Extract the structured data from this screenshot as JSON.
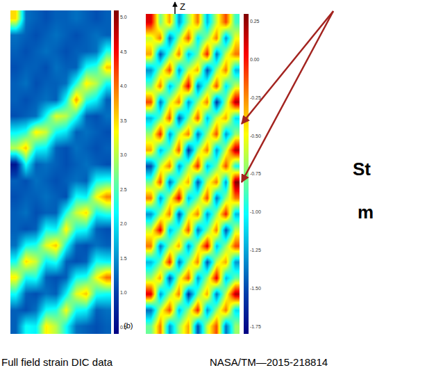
{
  "chart_data": [
    {
      "type": "heatmap",
      "tick_labels": false,
      "annotations": [
        "(b)"
      ],
      "caption": "Full field strain DIC data",
      "colorbar_range": [
        0.4,
        5.1
      ],
      "colorbar_ticks": [
        {
          "value": 0.5,
          "label": "0.5"
        },
        {
          "value": 1.0,
          "label": "1.0"
        },
        {
          "value": 1.5,
          "label": "1.5"
        },
        {
          "value": 2.0,
          "label": "2.0"
        },
        {
          "value": 2.5,
          "label": "2.5"
        },
        {
          "value": 3.0,
          "label": "3.0"
        },
        {
          "value": 3.5,
          "label": "3.5"
        },
        {
          "value": 4.0,
          "label": "4.0"
        },
        {
          "value": 4.5,
          "label": "4.5"
        },
        {
          "value": 5.0,
          "label": "5.0"
        }
      ],
      "z": [
        [
          3.5,
          1.3,
          1.2,
          1.1,
          1.2,
          1.2,
          1.3,
          1.2,
          1.1,
          1.2
        ],
        [
          1.3,
          1.2,
          1.1,
          1.2,
          1.3,
          1.2,
          1.1,
          1.2,
          1.3,
          1.2
        ],
        [
          1.2,
          1.1,
          1.2,
          1.3,
          1.2,
          1.1,
          1.2,
          1.2,
          1.3,
          2.3
        ],
        [
          1.1,
          1.2,
          1.2,
          1.1,
          1.3,
          1.2,
          1.2,
          2.2,
          2.4,
          3.6
        ],
        [
          1.2,
          1.3,
          1.1,
          1.2,
          1.2,
          1.3,
          2.3,
          3.4,
          3.0,
          2.2
        ],
        [
          1.2,
          1.1,
          1.2,
          1.3,
          1.2,
          2.2,
          3.8,
          2.4,
          2.1,
          1.2
        ],
        [
          1.1,
          1.2,
          1.3,
          2.2,
          3.2,
          3.0,
          2.3,
          1.2,
          1.1,
          1.3
        ],
        [
          2.1,
          2.3,
          3.4,
          3.1,
          2.2,
          2.0,
          1.2,
          1.3,
          1.2,
          1.1
        ],
        [
          3.0,
          3.6,
          2.2,
          2.1,
          1.2,
          1.1,
          1.3,
          1.2,
          1.1,
          1.2
        ],
        [
          0.6,
          2.2,
          1.2,
          1.3,
          1.2,
          1.1,
          1.2,
          1.3,
          1.2,
          1.1
        ],
        [
          1.2,
          1.1,
          1.3,
          1.2,
          1.1,
          1.2,
          1.3,
          1.2,
          2.2,
          2.3
        ],
        [
          1.1,
          1.2,
          1.2,
          1.3,
          1.2,
          1.1,
          2.2,
          2.1,
          3.3,
          3.9
        ],
        [
          1.2,
          1.3,
          1.1,
          1.2,
          1.2,
          2.3,
          3.1,
          3.5,
          2.2,
          2.4
        ],
        [
          1.2,
          1.1,
          1.2,
          2.2,
          2.1,
          3.4,
          2.3,
          2.2,
          1.2,
          1.1
        ],
        [
          1.3,
          2.2,
          2.3,
          3.2,
          3.6,
          2.2,
          1.2,
          1.1,
          1.3,
          1.2
        ],
        [
          2.2,
          3.5,
          3.1,
          2.1,
          2.3,
          1.2,
          1.1,
          1.2,
          2.2,
          2.1
        ],
        [
          3.4,
          2.2,
          2.3,
          1.2,
          1.1,
          1.2,
          2.2,
          2.3,
          3.3,
          4.0
        ],
        [
          2.2,
          1.2,
          1.1,
          1.3,
          1.2,
          2.1,
          3.2,
          3.6,
          2.3,
          2.2
        ],
        [
          1.2,
          1.1,
          1.3,
          2.2,
          2.3,
          3.3,
          2.2,
          2.1,
          1.2,
          1.3
        ],
        [
          1.2,
          2.2,
          2.1,
          3.4,
          3.0,
          2.2,
          1.3,
          1.2,
          1.1,
          1.2
        ]
      ]
    },
    {
      "type": "heatmap",
      "tick_labels": false,
      "annotations": [
        "Z",
        "St",
        "m"
      ],
      "caption": "NASA/TM—2015-218814",
      "colorbar_range": [
        -1.8,
        0.3
      ],
      "colorbar_ticks": [
        {
          "value": 0.25,
          "label": "0.25"
        },
        {
          "value": 0,
          "label": "0.00"
        },
        {
          "value": -0.25,
          "label": "-0.25"
        },
        {
          "value": -0.5,
          "label": "-0.50"
        },
        {
          "value": -0.75,
          "label": "-0.75"
        },
        {
          "value": -1.0,
          "label": "-1.00"
        },
        {
          "value": -1.25,
          "label": "-1.25"
        },
        {
          "value": -1.5,
          "label": "-1.50"
        },
        {
          "value": -1.75,
          "label": "-1.75"
        }
      ],
      "z": [
        [
          0.1,
          -0.8,
          -0.3,
          -1.3,
          -0.7,
          -0.2,
          -1.2,
          -0.6,
          -0.1,
          -0.9
        ],
        [
          -0.6,
          -0.2,
          -1.4,
          -0.7,
          -0.1,
          -1.1,
          -0.7,
          -0.2,
          -1.3,
          -0.5
        ],
        [
          -0.3,
          -1.5,
          -0.8,
          -0.2,
          -1.2,
          -0.8,
          0.0,
          -1.4,
          -0.6,
          -0.2
        ],
        [
          -1.3,
          -0.7,
          -0.1,
          -1.3,
          -0.6,
          -0.3,
          -1.5,
          -0.7,
          -0.2,
          -1.2
        ],
        [
          -0.8,
          -0.2,
          -1.2,
          -0.7,
          0.1,
          -1.4,
          -0.8,
          -0.1,
          -1.1,
          -0.6
        ],
        [
          -0.1,
          -1.4,
          -0.6,
          -0.2,
          -1.3,
          -0.7,
          -0.2,
          -1.6,
          -0.7,
          0.2
        ],
        [
          -1.2,
          -0.8,
          -0.1,
          -1.5,
          -0.8,
          -0.1,
          -1.2,
          -0.6,
          -0.3,
          -1.1
        ],
        [
          -0.7,
          0.0,
          -1.3,
          -0.6,
          -0.2,
          -1.4,
          -0.7,
          -0.1,
          -1.3,
          -0.7
        ],
        [
          -0.3,
          -1.2,
          -0.8,
          -0.1,
          -1.6,
          -0.7,
          -0.2,
          -1.3,
          -0.6,
          0.2
        ],
        [
          -1.5,
          -0.6,
          -0.2,
          -1.3,
          -0.7,
          0.0,
          -1.2,
          -0.8,
          -0.1,
          -1.0
        ],
        [
          -0.8,
          -0.1,
          -1.4,
          -0.7,
          -0.3,
          -1.5,
          -0.6,
          -0.2,
          -1.3,
          0.3
        ],
        [
          -0.2,
          -1.3,
          -0.6,
          0.1,
          -1.2,
          -0.8,
          -0.1,
          -1.4,
          -0.7,
          -0.2
        ],
        [
          -1.3,
          -0.7,
          -0.2,
          -1.5,
          -0.6,
          -0.2,
          -1.3,
          -0.7,
          0.0,
          -1.2
        ],
        [
          -0.6,
          0.1,
          -1.2,
          -0.8,
          -0.1,
          -1.4,
          -0.8,
          -0.2,
          -1.5,
          -0.6
        ],
        [
          -0.2,
          -1.4,
          -0.7,
          -0.3,
          -1.3,
          -0.6,
          0.1,
          -1.2,
          -0.7,
          -0.1
        ],
        [
          -1.2,
          -0.8,
          0.0,
          -1.4,
          -0.7,
          -0.2,
          -1.5,
          -0.6,
          -0.3,
          -1.3
        ],
        [
          -0.7,
          -0.3,
          -1.5,
          -0.6,
          -0.1,
          -1.3,
          -0.7,
          0.1,
          -1.2,
          -0.8
        ],
        [
          0.1,
          -1.3,
          -0.7,
          -0.2,
          -1.6,
          -0.8,
          -0.3,
          -1.4,
          -0.6,
          0.2
        ],
        [
          -1.4,
          -0.6,
          -0.1,
          -1.2,
          -0.7,
          0.0,
          -1.3,
          -0.7,
          -0.2,
          -1.1
        ],
        [
          -0.8,
          -0.2,
          -1.3,
          -0.7,
          -0.3,
          -1.5,
          -0.6,
          -0.1,
          -1.4,
          -0.7
        ]
      ]
    }
  ]
}
